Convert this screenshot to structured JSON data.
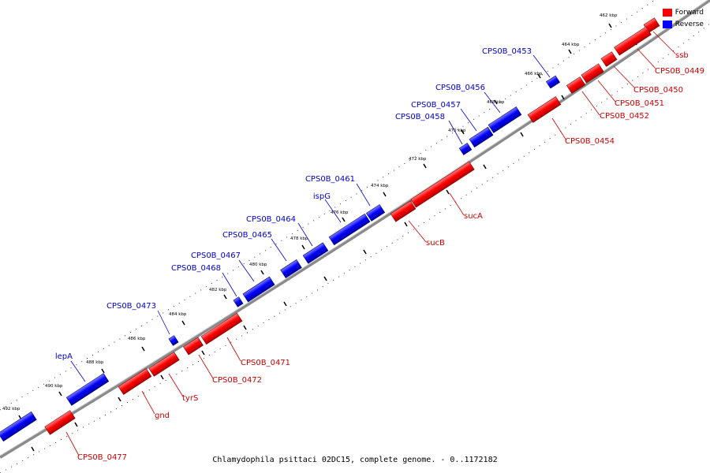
{
  "caption": "Chlamydophila psittaci 02DC15, complete genome. - 0..1172182",
  "legend": [
    {
      "label": "Forward",
      "color": "#ff0000"
    },
    {
      "label": "Reverse",
      "color": "#0000ff"
    }
  ],
  "colors": {
    "forward": "#ff0000",
    "reverse": "#0000ff",
    "forward_label": "#cc0000",
    "reverse_label": "#0000cc"
  },
  "tick_labels": [
    "462 kbp",
    "464 kbp",
    "466 kbp",
    "468 kbp",
    "470 kbp",
    "472 kbp",
    "474 kbp",
    "476 kbp",
    "478 kbp",
    "480 kbp",
    "482 kbp",
    "484 kbp",
    "486 kbp",
    "488 kbp",
    "490 kbp",
    "492 kbp"
  ],
  "genes": [
    {
      "name": "ssb",
      "strand": "forward"
    },
    {
      "name": "CPS0B_0449",
      "strand": "forward"
    },
    {
      "name": "CPS0B_0450",
      "strand": "forward"
    },
    {
      "name": "CPS0B_0451",
      "strand": "forward"
    },
    {
      "name": "CPS0B_0452",
      "strand": "forward"
    },
    {
      "name": "CPS0B_0453",
      "strand": "reverse"
    },
    {
      "name": "CPS0B_0454",
      "strand": "forward"
    },
    {
      "name": "CPS0B_0456",
      "strand": "reverse"
    },
    {
      "name": "CPS0B_0457",
      "strand": "reverse"
    },
    {
      "name": "CPS0B_0458",
      "strand": "reverse"
    },
    {
      "name": "sucA",
      "strand": "forward"
    },
    {
      "name": "sucB",
      "strand": "forward"
    },
    {
      "name": "CPS0B_0461",
      "strand": "reverse"
    },
    {
      "name": "ispG",
      "strand": "reverse"
    },
    {
      "name": "CPS0B_0464",
      "strand": "reverse"
    },
    {
      "name": "CPS0B_0465",
      "strand": "reverse"
    },
    {
      "name": "CPS0B_0467",
      "strand": "reverse"
    },
    {
      "name": "CPS0B_0468",
      "strand": "reverse"
    },
    {
      "name": "CPS0B_0471",
      "strand": "forward"
    },
    {
      "name": "CPS0B_0472",
      "strand": "forward"
    },
    {
      "name": "CPS0B_0473",
      "strand": "reverse"
    },
    {
      "name": "tyrS",
      "strand": "forward"
    },
    {
      "name": "gnd",
      "strand": "forward"
    },
    {
      "name": "lepA",
      "strand": "reverse"
    },
    {
      "name": "CPS0B_0477",
      "strand": "forward"
    }
  ]
}
